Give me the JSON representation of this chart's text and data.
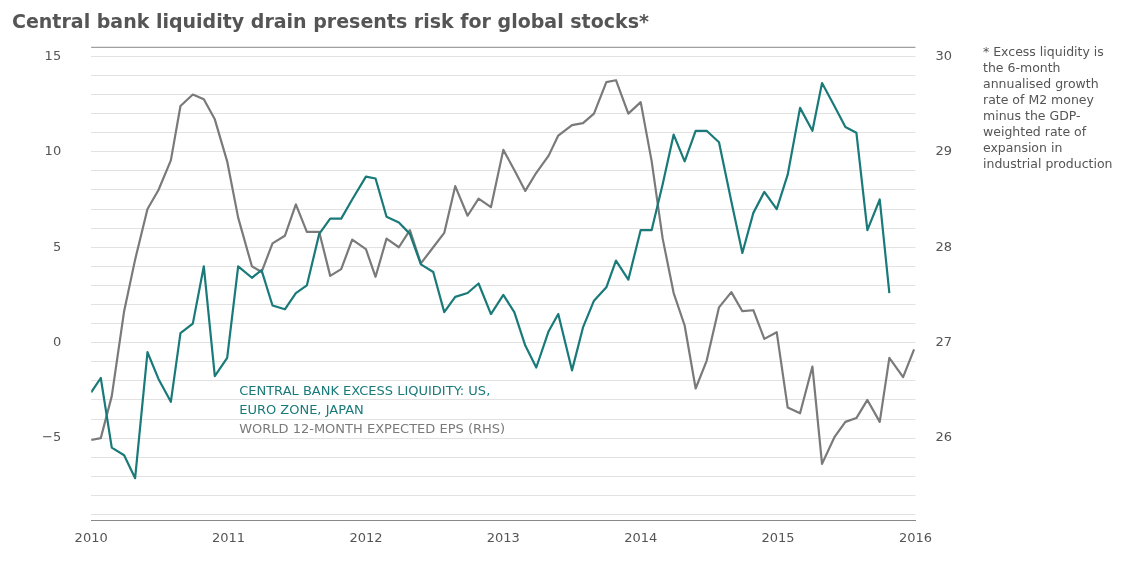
{
  "chart_data": {
    "type": "line",
    "title": "Central bank liquidity drain presents risk for global stocks*",
    "annotations": [
      "* Excess liquidity is the 6-month annualised growth rate of M2 money minus the GDP-weighted rate of expansion in industrial production"
    ],
    "xlim": [
      2010,
      2016
    ],
    "xticks": [
      2010,
      2011,
      2012,
      2013,
      2014,
      2015,
      2016
    ],
    "ylim": [
      -9.3,
      15.5
    ],
    "yticks": [
      {
        "value": -9,
        "label": null
      },
      {
        "value": -8,
        "label": null
      },
      {
        "value": -7,
        "label": null
      },
      {
        "value": -6,
        "label": null
      },
      {
        "value": -5,
        "label": "−5"
      },
      {
        "value": -4,
        "label": null
      },
      {
        "value": -3,
        "label": null
      },
      {
        "value": -2,
        "label": null
      },
      {
        "value": -1,
        "label": null
      },
      0,
      {
        "value": 1,
        "label": null
      },
      {
        "value": 2,
        "label": null
      },
      {
        "value": 3,
        "label": null
      },
      {
        "value": 4,
        "label": null
      },
      5,
      {
        "value": 6,
        "label": null
      },
      {
        "value": 7,
        "label": null
      },
      {
        "value": 8,
        "label": null
      },
      {
        "value": 9,
        "label": null
      },
      10,
      {
        "value": 11,
        "label": null
      },
      {
        "value": 12,
        "label": null
      },
      {
        "value": 13,
        "label": null
      },
      {
        "value": 14,
        "label": null
      },
      15
    ],
    "y2lim": [
      25.14,
      30.1
    ],
    "y2ticks": [
      26,
      27,
      28,
      29,
      30
    ],
    "grid": "y",
    "legend": "bottom left",
    "marker": "none",
    "line_style": "solid",
    "series": [
      {
        "name": "CENTRAL BANK EXCESS LIQUIDITY: US, EURO ZONE, JAPAN",
        "color": "#1a7a7a",
        "x": [
          2010.0,
          2010.07,
          2010.15,
          2010.24,
          2010.32,
          2010.41,
          2010.49,
          2010.58,
          2010.65,
          2010.74,
          2010.82,
          2010.9,
          2010.99,
          2011.07,
          2011.17,
          2011.24,
          2011.32,
          2011.41,
          2011.49,
          2011.57,
          2011.66,
          2011.74,
          2011.82,
          2011.9,
          2012.0,
          2012.07,
          2012.15,
          2012.24,
          2012.32,
          2012.4,
          2012.49,
          2012.57,
          2012.65,
          2012.74,
          2012.82,
          2012.91,
          2013.0,
          2013.08,
          2013.16,
          2013.24,
          2013.33,
          2013.4,
          2013.5,
          2013.58,
          2013.66,
          2013.75,
          2013.82,
          2013.91,
          2014.0,
          2014.08,
          2014.16,
          2014.24,
          2014.32,
          2014.4,
          2014.48,
          2014.57,
          2014.66,
          2014.74,
          2014.82,
          2014.9,
          2014.99,
          2015.07,
          2015.16,
          2015.25,
          2015.32,
          2015.41,
          2015.49,
          2015.57,
          2015.65,
          2015.74,
          2015.81
        ],
        "values": [
          -2.6,
          -1.85,
          -5.5,
          -5.9,
          -7.1,
          -0.5,
          -1.9,
          -3.1,
          0.5,
          1.0,
          4.0,
          -1.75,
          -0.8,
          4.0,
          3.4,
          3.8,
          1.95,
          1.75,
          2.6,
          3.0,
          5.7,
          6.5,
          6.5,
          7.5,
          8.7,
          8.6,
          6.6,
          6.3,
          5.7,
          4.1,
          3.7,
          1.6,
          2.4,
          2.6,
          3.1,
          1.5,
          2.5,
          1.6,
          -0.15,
          -1.3,
          0.6,
          1.5,
          -1.45,
          0.8,
          2.2,
          2.9,
          4.3,
          3.3,
          5.9,
          5.9,
          8.3,
          10.9,
          9.5,
          11.1,
          11.1,
          10.5,
          7.4,
          4.7,
          6.8,
          7.9,
          7.0,
          8.8,
          12.3,
          11.1,
          13.6,
          12.4,
          11.3,
          11.0,
          5.9,
          7.5,
          2.6
        ]
      },
      {
        "name": "WORLD 12-MONTH EXPECTED EPS (RHS)",
        "color": "#7a7a7a",
        "axis": "y2",
        "x": [
          2010.0,
          2010.07,
          2010.15,
          2010.24,
          2010.32,
          2010.41,
          2010.49,
          2010.58,
          2010.65,
          2010.74,
          2010.82,
          2010.9,
          2010.99,
          2011.07,
          2011.17,
          2011.24,
          2011.32,
          2011.41,
          2011.49,
          2011.57,
          2011.66,
          2011.74,
          2011.82,
          2011.9,
          2012.0,
          2012.07,
          2012.15,
          2012.24,
          2012.32,
          2012.4,
          2012.49,
          2012.57,
          2012.65,
          2012.74,
          2012.82,
          2012.91,
          2013.0,
          2013.08,
          2013.16,
          2013.24,
          2013.33,
          2013.4,
          2013.5,
          2013.58,
          2013.66,
          2013.75,
          2013.82,
          2013.91,
          2014.0,
          2014.08,
          2014.16,
          2014.24,
          2014.32,
          2014.4,
          2014.48,
          2014.57,
          2014.66,
          2014.74,
          2014.82,
          2014.9,
          2014.99,
          2015.07,
          2015.16,
          2015.25,
          2015.32,
          2015.41,
          2015.49,
          2015.57,
          2015.65,
          2015.74,
          2015.81,
          2015.91,
          2015.99
        ],
        "values": [
          25.98,
          26.0,
          26.44,
          27.33,
          27.87,
          28.4,
          28.6,
          28.91,
          29.48,
          29.6,
          29.55,
          29.34,
          28.9,
          28.31,
          27.8,
          27.74,
          28.04,
          28.12,
          28.45,
          28.16,
          28.16,
          27.7,
          27.77,
          28.08,
          27.98,
          27.69,
          28.09,
          28.0,
          28.18,
          27.83,
          28.0,
          28.15,
          28.64,
          28.33,
          28.51,
          28.42,
          29.02,
          28.81,
          28.59,
          28.78,
          28.96,
          29.17,
          29.28,
          29.3,
          29.4,
          29.73,
          29.75,
          29.4,
          29.52,
          28.9,
          28.09,
          27.52,
          27.18,
          26.52,
          26.81,
          27.37,
          27.53,
          27.33,
          27.34,
          27.04,
          27.11,
          26.32,
          26.26,
          26.75,
          25.73,
          26.01,
          26.17,
          26.21,
          26.4,
          26.17,
          26.84,
          26.64,
          26.93
        ]
      }
    ]
  }
}
